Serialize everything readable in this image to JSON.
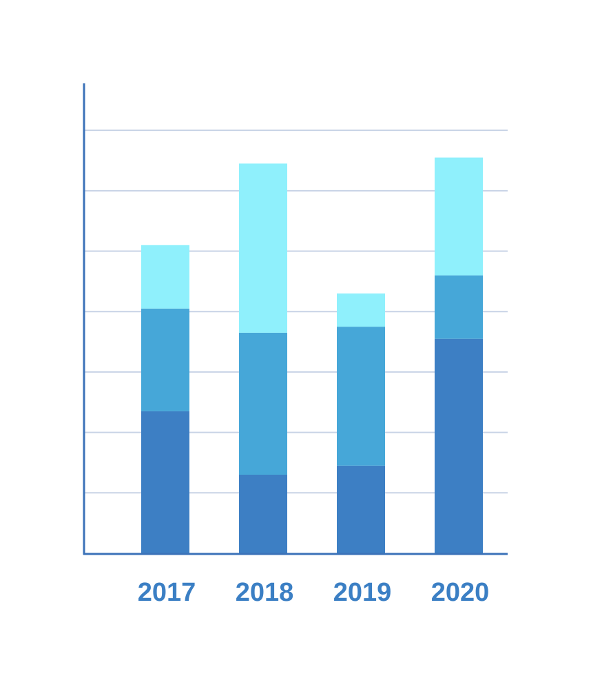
{
  "chart_data": {
    "type": "stacked_bar",
    "categories": [
      "2017",
      "2018",
      "2019",
      "2020"
    ],
    "series": [
      {
        "color": "#3d7fc4",
        "values": [
          2.35,
          1.3,
          1.45,
          3.55
        ]
      },
      {
        "color": "#46a7d8",
        "values": [
          1.7,
          2.35,
          2.3,
          1.05
        ]
      },
      {
        "color": "#8ff0fc",
        "values": [
          1.05,
          2.8,
          0.55,
          1.95
        ]
      }
    ],
    "ylim": [
      0,
      7.8
    ],
    "yticks": [
      1,
      2,
      3,
      4,
      5,
      6,
      7
    ],
    "grid": true
  }
}
